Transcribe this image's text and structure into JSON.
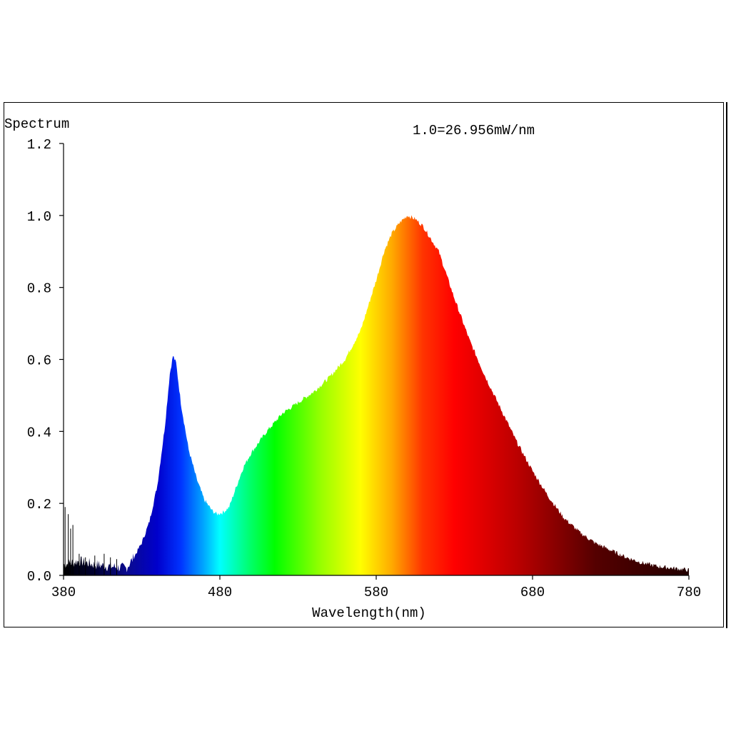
{
  "chart_data": {
    "type": "area",
    "title": "Spectrum",
    "annotation": "1.0=26.956mW/nm",
    "xlabel": "Wavelength(nm)",
    "ylabel": "",
    "xlim": [
      380,
      780
    ],
    "ylim": [
      0,
      1.2
    ],
    "x_ticks": [
      380,
      480,
      580,
      680,
      780
    ],
    "y_ticks": [
      0,
      0.2,
      0.4,
      0.6,
      0.8,
      1.0,
      1.2
    ],
    "x_tick_labels": [
      "380",
      "480",
      "580",
      "680",
      "780"
    ],
    "y_tick_labels": [
      "0.0",
      "0.2",
      "0.4",
      "0.6",
      "0.8",
      "1.0",
      "1.2"
    ],
    "grid": false,
    "legend": "none",
    "series": [
      {
        "fill": "visible-spectrum-gradient",
        "x": [
          380,
          390,
          400,
          410,
          420,
          425,
          430,
          435,
          440,
          445,
          448,
          450,
          452,
          455,
          460,
          465,
          470,
          475,
          478,
          482,
          486,
          490,
          495,
          500,
          505,
          510,
          520,
          530,
          540,
          550,
          560,
          570,
          575,
          580,
          585,
          590,
          595,
          600,
          605,
          610,
          620,
          630,
          640,
          650,
          660,
          670,
          680,
          690,
          700,
          710,
          720,
          730,
          740,
          750,
          760,
          770,
          780
        ],
        "y": [
          0.03,
          0.04,
          0.03,
          0.025,
          0.02,
          0.05,
          0.09,
          0.15,
          0.25,
          0.42,
          0.56,
          0.61,
          0.59,
          0.48,
          0.35,
          0.27,
          0.21,
          0.18,
          0.17,
          0.175,
          0.19,
          0.24,
          0.3,
          0.34,
          0.37,
          0.4,
          0.45,
          0.48,
          0.51,
          0.55,
          0.6,
          0.68,
          0.75,
          0.82,
          0.9,
          0.95,
          0.98,
          1.0,
          0.99,
          0.97,
          0.9,
          0.77,
          0.65,
          0.55,
          0.46,
          0.37,
          0.29,
          0.22,
          0.16,
          0.12,
          0.09,
          0.07,
          0.05,
          0.035,
          0.025,
          0.02,
          0.015
        ]
      }
    ]
  },
  "colors": {
    "axis": "#000000",
    "spectrum_stops": [
      {
        "nm": 380,
        "color": "#000000"
      },
      {
        "nm": 400,
        "color": "#000033"
      },
      {
        "nm": 420,
        "color": "#0a0a8c"
      },
      {
        "nm": 440,
        "color": "#0000cc"
      },
      {
        "nm": 455,
        "color": "#0033ff"
      },
      {
        "nm": 470,
        "color": "#00aaff"
      },
      {
        "nm": 480,
        "color": "#00ffff"
      },
      {
        "nm": 500,
        "color": "#00ff66"
      },
      {
        "nm": 515,
        "color": "#00ff00"
      },
      {
        "nm": 545,
        "color": "#99ff00"
      },
      {
        "nm": 570,
        "color": "#ffff00"
      },
      {
        "nm": 590,
        "color": "#ffaa00"
      },
      {
        "nm": 610,
        "color": "#ff3300"
      },
      {
        "nm": 630,
        "color": "#ff0000"
      },
      {
        "nm": 670,
        "color": "#bb0000"
      },
      {
        "nm": 720,
        "color": "#550000"
      },
      {
        "nm": 780,
        "color": "#220000"
      }
    ]
  }
}
